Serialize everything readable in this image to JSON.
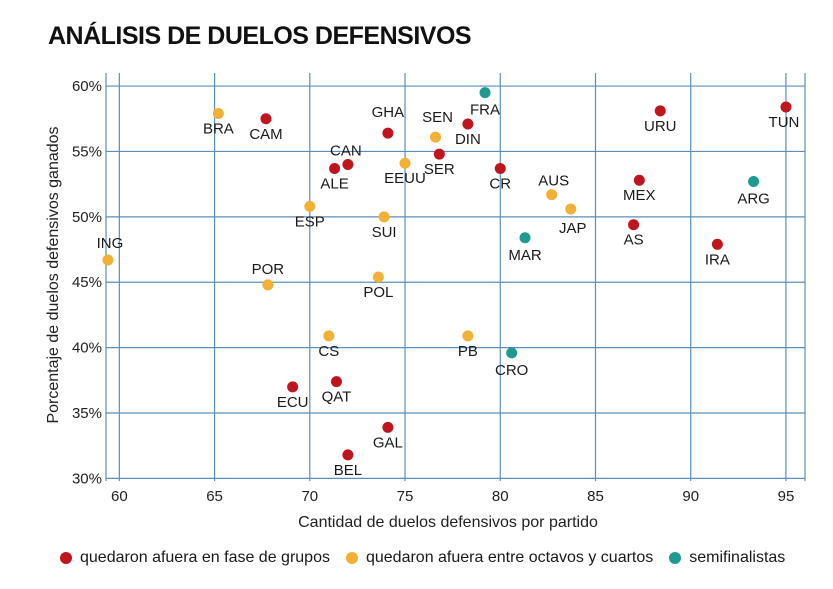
{
  "title": "ANÁLISIS DE DUELOS DEFENSIVOS",
  "chart_data": {
    "type": "scatter",
    "xlabel": "Cantidad de duelos defensivos por partido",
    "ylabel": "Porcentaje de duelos defensivos ganados",
    "xlim": [
      59.3,
      96
    ],
    "ylim": [
      29.8,
      61
    ],
    "x_ticks": [
      60,
      65,
      70,
      75,
      80,
      85,
      90,
      95
    ],
    "x_tick_labels": [
      "60",
      "65",
      "70",
      "75",
      "80",
      "85",
      "90",
      "95"
    ],
    "y_ticks": [
      30,
      35,
      40,
      45,
      50,
      55,
      60
    ],
    "y_tick_labels": [
      "30%",
      "35%",
      "40%",
      "45%",
      "50%",
      "55%",
      "60%"
    ],
    "grid": true,
    "series": [
      {
        "name": "quedaron afuera en fase de grupos",
        "color": "#c0141e",
        "points": [
          {
            "label": "CAM",
            "x": 67.7,
            "y": 57.5
          },
          {
            "label": "GHA",
            "x": 74.1,
            "y": 56.4
          },
          {
            "label": "DIN",
            "x": 78.3,
            "y": 57.1
          },
          {
            "label": "URU",
            "x": 88.4,
            "y": 58.1
          },
          {
            "label": "TUN",
            "x": 95.0,
            "y": 58.4
          },
          {
            "label": "CAN",
            "x": 72.0,
            "y": 54.0
          },
          {
            "label": "ALE",
            "x": 71.3,
            "y": 53.7
          },
          {
            "label": "SER",
            "x": 76.8,
            "y": 54.8
          },
          {
            "label": "CR",
            "x": 80.0,
            "y": 53.7
          },
          {
            "label": "MEX",
            "x": 87.3,
            "y": 52.8
          },
          {
            "label": "AS",
            "x": 87.0,
            "y": 49.4
          },
          {
            "label": "IRA",
            "x": 91.4,
            "y": 47.9
          },
          {
            "label": "ECU",
            "x": 69.1,
            "y": 37.0
          },
          {
            "label": "QAT",
            "x": 71.4,
            "y": 37.4
          },
          {
            "label": "GAL",
            "x": 74.1,
            "y": 33.9
          },
          {
            "label": "BEL",
            "x": 72.0,
            "y": 31.8
          }
        ]
      },
      {
        "name": "quedaron afuera entre octavos y cuartos",
        "color": "#f2b134",
        "points": [
          {
            "label": "BRA",
            "x": 65.2,
            "y": 57.9
          },
          {
            "label": "SEN",
            "x": 76.6,
            "y": 56.1
          },
          {
            "label": "EEUU",
            "x": 75.0,
            "y": 54.1
          },
          {
            "label": "AUS",
            "x": 82.7,
            "y": 51.7
          },
          {
            "label": "JAP",
            "x": 83.7,
            "y": 50.6
          },
          {
            "label": "ESP",
            "x": 70.0,
            "y": 50.8
          },
          {
            "label": "SUI",
            "x": 73.9,
            "y": 50.0
          },
          {
            "label": "ING",
            "x": 59.4,
            "y": 46.7
          },
          {
            "label": "POR",
            "x": 67.8,
            "y": 44.8
          },
          {
            "label": "POL",
            "x": 73.6,
            "y": 45.4
          },
          {
            "label": "CS",
            "x": 71.0,
            "y": 40.9
          },
          {
            "label": "PB",
            "x": 78.3,
            "y": 40.9
          }
        ]
      },
      {
        "name": "semifinalistas",
        "color": "#1f9a8e",
        "points": [
          {
            "label": "FRA",
            "x": 79.2,
            "y": 59.5
          },
          {
            "label": "ARG",
            "x": 93.3,
            "y": 52.7
          },
          {
            "label": "MAR",
            "x": 81.3,
            "y": 48.4
          },
          {
            "label": "CRO",
            "x": 80.6,
            "y": 39.6
          }
        ]
      }
    ]
  }
}
